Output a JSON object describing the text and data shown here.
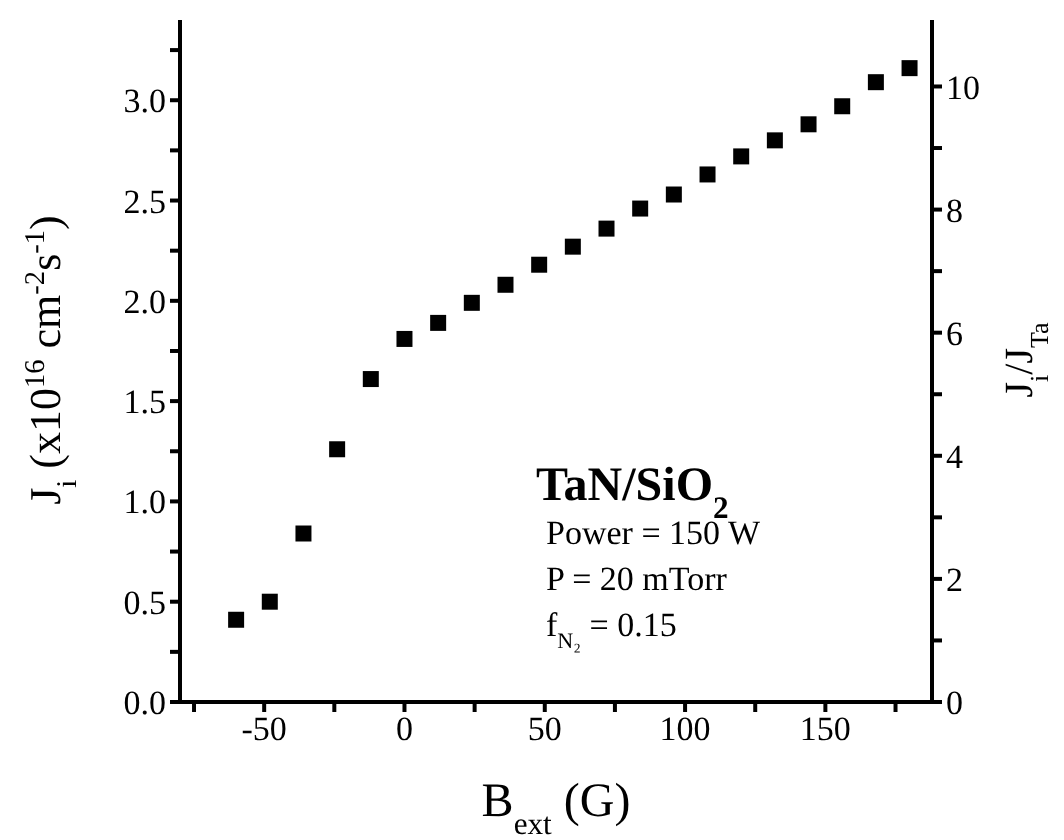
{
  "chart_data": {
    "type": "scatter",
    "xlabel": "B$_{ext}$ (G)",
    "ylabel": "J$_{i}$ (x10$^{16}$ cm$^{-2}$s$^{-1}$)",
    "y2label": "J$_{i}$/J$_{Ta}$",
    "x": [
      -60,
      -48,
      -36,
      -24,
      -12,
      0,
      12,
      24,
      36,
      48,
      60,
      72,
      84,
      96,
      108,
      120,
      132,
      144,
      156,
      168,
      180
    ],
    "series": [
      {
        "color": "#000000",
        "values": [
          0.41,
          0.5,
          0.84,
          1.26,
          1.61,
          1.81,
          1.89,
          1.99,
          2.08,
          2.18,
          2.27,
          2.36,
          2.46,
          2.53,
          2.63,
          2.72,
          2.8,
          2.88,
          2.97,
          3.09,
          3.16
        ]
      }
    ],
    "marker": "square",
    "xlim": [
      -80,
      188
    ],
    "xticks": [
      {
        "value": -75,
        "label": null
      },
      -50,
      {
        "value": -25,
        "label": null
      },
      0,
      {
        "value": 25,
        "label": null
      },
      50,
      {
        "value": 75,
        "label": null
      },
      100,
      {
        "value": 125,
        "label": null
      },
      150,
      {
        "value": 175,
        "label": null
      }
    ],
    "ylim": [
      0,
      3.4
    ],
    "yticks": [
      {
        "value": 0,
        "label": "0.0"
      },
      {
        "value": 0.25,
        "label": null
      },
      0.5,
      {
        "value": 0.75,
        "label": null
      },
      {
        "value": 1,
        "label": "1.0"
      },
      {
        "value": 1.25,
        "label": null
      },
      1.5,
      {
        "value": 1.75,
        "label": null
      },
      {
        "value": 2,
        "label": "2.0"
      },
      {
        "value": 2.25,
        "label": null
      },
      2.5,
      {
        "value": 2.75,
        "label": null
      },
      {
        "value": 3,
        "label": "3.0"
      },
      {
        "value": 3.25,
        "label": null
      }
    ],
    "y2lim": [
      0,
      11.08
    ],
    "y2ticks": [
      0,
      {
        "value": 1,
        "label": null
      },
      2,
      {
        "value": 3,
        "label": null
      },
      4,
      {
        "value": 5,
        "label": null
      },
      6,
      {
        "value": 7,
        "label": null
      },
      8,
      {
        "value": 9,
        "label": null
      },
      10
    ],
    "annotations": [
      "TaN/SiO$_{2}$",
      "Power = 150 W",
      "P = 20 mTorr",
      "f$_{N₂}$ = 0.15"
    ],
    "grid": false,
    "legend": false
  }
}
